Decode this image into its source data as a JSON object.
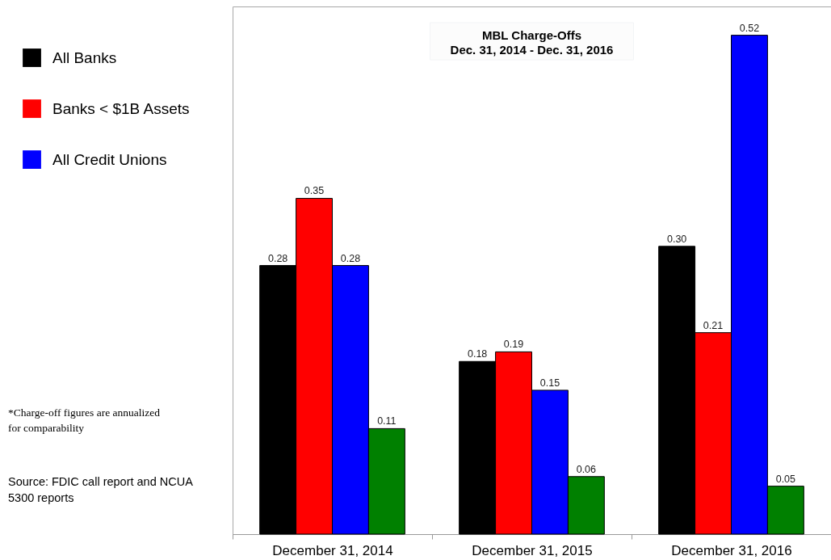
{
  "chart_data": {
    "type": "bar",
    "title": "MBL Charge-Offs",
    "subtitle": "Dec. 31, 2014 - Dec. 31, 2016",
    "categories": [
      "December 31, 2014",
      "December 31, 2015",
      "December 31, 2016"
    ],
    "series": [
      {
        "name": "All Banks",
        "color": "#000000",
        "values": [
          0.28,
          0.18,
          0.3
        ],
        "value_labels": [
          "0.28",
          "0.18",
          "0.30"
        ]
      },
      {
        "name": "Banks < $1B Assets",
        "color": "#ff0000",
        "values": [
          0.35,
          0.19,
          0.21
        ],
        "value_labels": [
          "0.35",
          "0.19",
          "0.21"
        ]
      },
      {
        "name": "All Credit Unions",
        "color": "#0000ff",
        "values": [
          0.28,
          0.15,
          0.52
        ],
        "value_labels": [
          "0.28",
          "0.15",
          "0.52"
        ]
      },
      {
        "color": "#008000",
        "values": [
          0.11,
          0.06,
          0.05
        ],
        "value_labels": [
          "0.11",
          "0.06",
          "0.05"
        ]
      }
    ],
    "legend": "top left",
    "annotations": [
      "*Charge-off figures are annualized for comparability",
      "Source: FDIC call report and NCUA 5300 reports"
    ]
  }
}
